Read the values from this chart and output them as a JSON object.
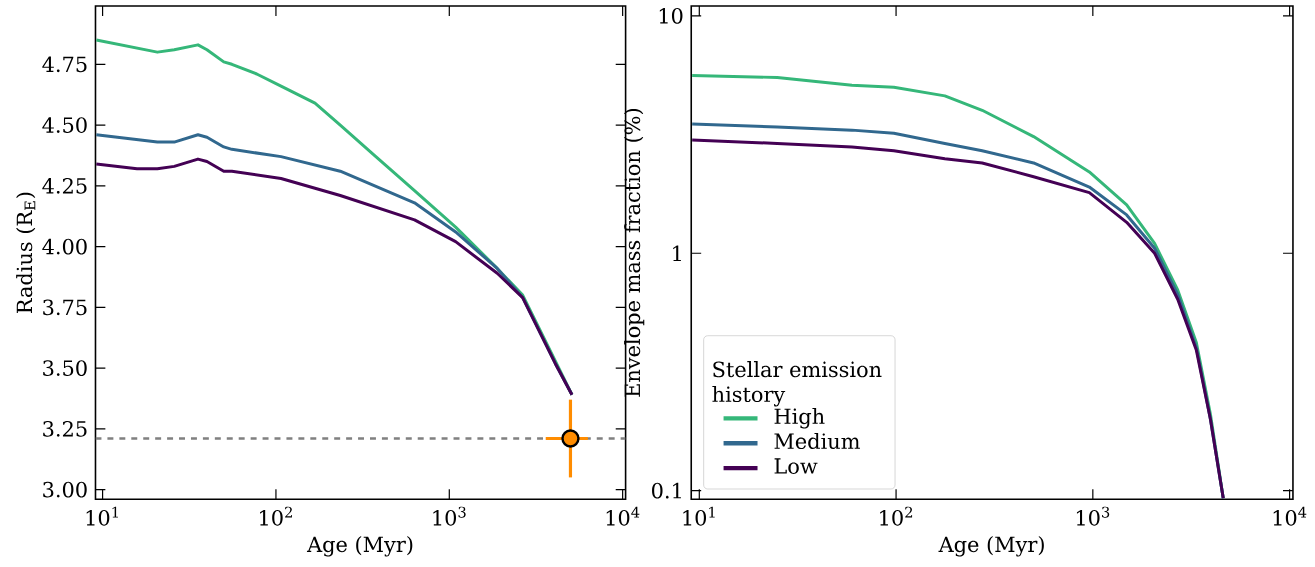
{
  "chart_data": [
    {
      "type": "line",
      "xlabel": "Age (Myr)",
      "ylabel": "Radius (R$_{E}$)",
      "log": "x",
      "xlim": [
        9.1,
        10400
      ],
      "ylim": [
        2.96,
        4.99
      ],
      "xticks": [
        {
          "value": 10,
          "label": "10$^{1}$"
        },
        {
          "value": 100,
          "label": "10$^{2}$"
        },
        {
          "value": 1000,
          "label": "10$^{3}$"
        },
        {
          "value": 10000,
          "label": "10$^{4}$"
        }
      ],
      "yticks": [
        {
          "value": 3,
          "label": "3.00"
        },
        3.25,
        {
          "value": 3.5,
          "label": "3.50"
        },
        3.75,
        {
          "value": 4,
          "label": "4.00"
        },
        4.25,
        {
          "value": 4.5,
          "label": "4.50"
        },
        4.75
      ],
      "marker": "none",
      "line_style": "solid",
      "series": [
        {
          "color": "#35b779",
          "x": [
            9.2,
            20.7,
            25.9,
            35.5,
            40,
            50,
            55.7,
            77.5,
            107,
            168,
            235,
            363,
            630,
            1088,
            1890,
            2650,
            4080,
            5100
          ],
          "values": [
            4.85,
            4.8,
            4.81,
            4.83,
            4.81,
            4.76,
            4.75,
            4.71,
            4.66,
            4.59,
            4.5,
            4.38,
            4.23,
            4.08,
            3.91,
            3.8,
            3.53,
            3.39
          ]
        },
        {
          "color": "#31688e",
          "x": [
            9.2,
            20.7,
            25.9,
            35.5,
            40,
            50,
            55.7,
            107,
            235,
            630,
            1088,
            1890,
            2650,
            4080,
            5100
          ],
          "values": [
            4.46,
            4.43,
            4.43,
            4.46,
            4.45,
            4.41,
            4.4,
            4.37,
            4.31,
            4.18,
            4.06,
            3.91,
            3.79,
            3.52,
            3.39
          ]
        },
        {
          "color": "#440154",
          "x": [
            9.2,
            15.8,
            20.7,
            25.9,
            35.5,
            40,
            50,
            55.7,
            107,
            235,
            630,
            1088,
            1890,
            2650,
            4080,
            5100
          ],
          "values": [
            4.34,
            4.32,
            4.32,
            4.33,
            4.36,
            4.35,
            4.31,
            4.31,
            4.28,
            4.21,
            4.11,
            4.02,
            3.89,
            3.79,
            3.52,
            3.39
          ]
        },
        {
          "type": "scatter",
          "marker": "circle",
          "color": "#ff8c00",
          "x": [
            5000
          ],
          "values": [
            3.21
          ],
          "errors": [
            0.16
          ],
          "xerrors": [
            [
              3600,
              6300
            ]
          ]
        }
      ],
      "ref_lines": [
        {
          "axis": "y",
          "value": 3.21,
          "color": "#808080",
          "line_style": "dashed"
        }
      ]
    },
    {
      "type": "line",
      "xlabel": "Age (Myr)",
      "ylabel": "Envelope mass fraction (%)",
      "log": "xy",
      "xlim": [
        9.1,
        10400
      ],
      "ylim": [
        0.092,
        11
      ],
      "xticks": [
        {
          "value": 10,
          "label": "10$^{1}$"
        },
        {
          "value": 100,
          "label": "10$^{2}$"
        },
        {
          "value": 1000,
          "label": "10$^{3}$"
        },
        {
          "value": 10000,
          "label": "10$^{4}$"
        }
      ],
      "yticks": [
        0.1,
        1,
        10
      ],
      "marker": "none",
      "line_style": "solid",
      "legend": "bottom left",
      "legend_title": "Stellar emission history",
      "series": [
        {
          "name": "High",
          "color": "#35b779",
          "x": [
            9.2,
            24.9,
            59.7,
            97.5,
            177,
            274,
            500,
            960,
            1486,
            2060,
            2700,
            3360,
            3960,
            4600
          ],
          "values": [
            5.6,
            5.5,
            5.1,
            5.0,
            4.6,
            4.0,
            3.1,
            2.2,
            1.6,
            1.1,
            0.7,
            0.42,
            0.21,
            0.093
          ]
        },
        {
          "name": "Medium",
          "color": "#31688e",
          "x": [
            9.2,
            24.9,
            59.7,
            97.5,
            177,
            274,
            500,
            960,
            1486,
            2060,
            2700,
            3360,
            3960,
            4600
          ],
          "values": [
            3.5,
            3.4,
            3.3,
            3.2,
            2.9,
            2.7,
            2.4,
            1.9,
            1.45,
            1.05,
            0.67,
            0.4,
            0.2,
            0.093
          ]
        },
        {
          "name": "Low",
          "color": "#440154",
          "x": [
            9.2,
            24.9,
            59.7,
            97.5,
            177,
            274,
            500,
            960,
            1486,
            2060,
            2700,
            3360,
            3960,
            4600
          ],
          "values": [
            3.0,
            2.9,
            2.8,
            2.7,
            2.5,
            2.4,
            2.1,
            1.8,
            1.35,
            1.0,
            0.64,
            0.39,
            0.2,
            0.093
          ]
        }
      ]
    }
  ]
}
